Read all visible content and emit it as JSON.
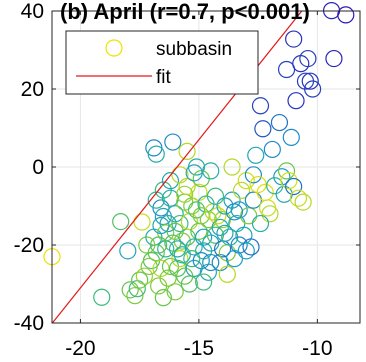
{
  "chart_data": {
    "type": "scatter",
    "title": "(b) April (r=0.7, p<0.001)",
    "xlim": [
      -21.2,
      -8.2
    ],
    "ylim": [
      -40,
      40
    ],
    "x_ticks": [
      -20,
      -15,
      -10
    ],
    "x_tick_labels": [
      "-20",
      "-15",
      "-10"
    ],
    "y_ticks": [
      -40,
      -20,
      0,
      20,
      40
    ],
    "y_tick_labels": [
      "-40",
      "-20",
      "0",
      "20",
      "40"
    ],
    "grid": true,
    "legend_position": "top-left",
    "series": [
      {
        "name": "subbasin",
        "marker": "open-circle",
        "color_scale": [
          "#f2e000",
          "#c7dc20",
          "#6cc742",
          "#2cb39a",
          "#1d9cc9",
          "#2346c1",
          "#2b18b8"
        ],
        "points": [
          [
            -21.2,
            -23.0,
            0.02
          ],
          [
            -19.1,
            -33.4,
            0.45
          ],
          [
            -18.3,
            -14.0,
            0.4
          ],
          [
            -18.0,
            -21.5,
            0.6
          ],
          [
            -17.9,
            -31.5,
            0.35
          ],
          [
            -17.7,
            -33.0,
            0.3
          ],
          [
            -17.6,
            -31.2,
            0.45
          ],
          [
            -17.5,
            -29.0,
            0.35
          ],
          [
            -17.4,
            -14.1,
            0.15
          ],
          [
            -17.3,
            -28.0,
            0.25
          ],
          [
            -17.2,
            -20.0,
            0.3
          ],
          [
            -17.0,
            -24.0,
            0.4
          ],
          [
            -16.9,
            -18.0,
            0.55
          ],
          [
            -16.9,
            4.9,
            0.7
          ],
          [
            -16.8,
            3.3,
            0.55
          ],
          [
            -16.8,
            -22.0,
            0.35
          ],
          [
            -16.7,
            -30.5,
            0.3
          ],
          [
            -16.6,
            -26.0,
            0.2
          ],
          [
            -16.6,
            -10.5,
            0.7
          ],
          [
            -16.5,
            -12.7,
            0.6
          ],
          [
            -16.5,
            -5.9,
            0.45
          ],
          [
            -16.4,
            -16.9,
            0.3
          ],
          [
            -16.4,
            -21.0,
            0.5
          ],
          [
            -16.3,
            -14.5,
            0.6
          ],
          [
            -16.3,
            -28.5,
            0.3
          ],
          [
            -16.2,
            -8.0,
            0.55
          ],
          [
            -16.2,
            -25.5,
            0.35
          ],
          [
            -16.1,
            6.4,
            0.7
          ],
          [
            -16.1,
            -19.5,
            0.4
          ],
          [
            -16.0,
            -12.0,
            0.55
          ],
          [
            -16.0,
            -16.5,
            0.35
          ],
          [
            -16.0,
            -32.0,
            0.3
          ],
          [
            -15.9,
            -26.0,
            0.4
          ],
          [
            -15.8,
            -23.5,
            0.2
          ],
          [
            -15.8,
            -14.5,
            0.45
          ],
          [
            -15.7,
            -19.0,
            0.3
          ],
          [
            -15.7,
            -22.5,
            0.5
          ],
          [
            -15.6,
            -28.0,
            0.35
          ],
          [
            -15.6,
            -9.0,
            0.3
          ],
          [
            -15.5,
            -5.0,
            0.2
          ],
          [
            -15.5,
            4.0,
            0.2
          ],
          [
            -15.5,
            -18.0,
            0.4
          ],
          [
            -15.4,
            -14.0,
            0.2
          ],
          [
            -15.3,
            -10.0,
            0.3
          ],
          [
            -15.3,
            -23.5,
            0.45
          ],
          [
            -15.2,
            -20.5,
            0.55
          ],
          [
            -15.2,
            -26.0,
            0.6
          ],
          [
            -15.1,
            0.0,
            0.55
          ],
          [
            -15.1,
            -11.0,
            0.4
          ],
          [
            -15.0,
            -16.5,
            0.35
          ],
          [
            -15.0,
            -6.5,
            0.15
          ],
          [
            -14.9,
            -12.5,
            0.3
          ],
          [
            -14.9,
            -24.0,
            0.7
          ],
          [
            -14.8,
            -21.5,
            0.5
          ],
          [
            -14.8,
            -18.0,
            0.65
          ],
          [
            -14.7,
            -9.5,
            0.5
          ],
          [
            -14.6,
            -27.0,
            0.6
          ],
          [
            -14.6,
            -13.5,
            0.3
          ],
          [
            -14.5,
            -19.5,
            0.6
          ],
          [
            -14.5,
            -24.5,
            0.7
          ],
          [
            -14.4,
            -11.5,
            0.2
          ],
          [
            -14.3,
            -17.5,
            0.4
          ],
          [
            -14.2,
            -12.5,
            0.15
          ],
          [
            -14.1,
            -24.5,
            0.7
          ],
          [
            -14.1,
            -15.5,
            0.6
          ],
          [
            -14.0,
            -21.0,
            0.75
          ],
          [
            -14.0,
            -13.5,
            0.25
          ],
          [
            -13.9,
            -10.0,
            0.6
          ],
          [
            -13.8,
            -22.0,
            0.3
          ],
          [
            -13.8,
            -27.5,
            0.2
          ],
          [
            -13.7,
            -18.0,
            0.5
          ],
          [
            -13.6,
            -8.5,
            0.6
          ],
          [
            -13.5,
            -23.5,
            0.65
          ],
          [
            -13.4,
            -14.5,
            0.55
          ],
          [
            -13.3,
            -20.0,
            0.7
          ],
          [
            -13.3,
            -11.0,
            0.65
          ],
          [
            -13.2,
            -6.0,
            0.2
          ],
          [
            -13.1,
            -17.5,
            0.6
          ],
          [
            -13.0,
            -21.5,
            0.65
          ],
          [
            -13.0,
            -3.5,
            0.15
          ],
          [
            -12.9,
            -12.5,
            0.3
          ],
          [
            -12.8,
            -20.5,
            0.75
          ],
          [
            -12.7,
            -2.0,
            0.7
          ],
          [
            -12.7,
            -8.5,
            0.7
          ],
          [
            -12.6,
            3.0,
            0.6
          ],
          [
            -12.5,
            -4.5,
            0.1
          ],
          [
            -12.4,
            15.7,
            0.85
          ],
          [
            -12.3,
            9.8,
            0.8
          ],
          [
            -12.2,
            -6.5,
            0.05
          ],
          [
            -12.0,
            -12.0,
            0.2
          ],
          [
            -11.9,
            4.5,
            0.7
          ],
          [
            -11.8,
            -4.8,
            0.5
          ],
          [
            -11.6,
            11.4,
            0.75
          ],
          [
            -11.5,
            -2.5,
            0.65
          ],
          [
            -11.4,
            -7.0,
            0.6
          ],
          [
            -11.3,
            -1.0,
            0.35
          ],
          [
            -11.3,
            25.0,
            0.85
          ],
          [
            -11.2,
            -3.5,
            0.1
          ],
          [
            -11.1,
            7.6,
            0.7
          ],
          [
            -11.0,
            -5.0,
            0.75
          ],
          [
            -11.0,
            32.8,
            0.9
          ],
          [
            -10.9,
            17.0,
            0.9
          ],
          [
            -10.8,
            -8.0,
            0.15
          ],
          [
            -10.7,
            26.5,
            0.9
          ],
          [
            -10.6,
            -9.0,
            0.2
          ],
          [
            -10.5,
            22.0,
            0.85
          ],
          [
            -10.4,
            27.8,
            0.85
          ],
          [
            -10.3,
            22.0,
            0.9
          ],
          [
            -10.2,
            20.0,
            0.85
          ],
          [
            -9.4,
            40.1,
            0.95
          ],
          [
            -9.3,
            27.8,
            0.95
          ],
          [
            -8.8,
            39.0,
            1.0
          ],
          [
            -16.2,
            -3.5,
            0.6
          ],
          [
            -15.8,
            -2.0,
            0.2
          ],
          [
            -14.9,
            -3.0,
            0.35
          ],
          [
            -14.5,
            -1.0,
            0.55
          ],
          [
            -15.6,
            -7.0,
            0.25
          ],
          [
            -16.7,
            -20.0,
            0.4
          ],
          [
            -17.1,
            -25.5,
            0.3
          ],
          [
            -16.5,
            -33.5,
            0.35
          ],
          [
            -15.4,
            -30.0,
            0.4
          ],
          [
            -14.8,
            -29.5,
            0.45
          ],
          [
            -13.9,
            -17.0,
            0.6
          ],
          [
            -12.4,
            -14.5,
            0.55
          ],
          [
            -12.1,
            -10.5,
            0.15
          ],
          [
            -13.6,
            0.0,
            0.2
          ],
          [
            -15.9,
            -21.0,
            0.55
          ],
          [
            -16.6,
            -15.0,
            0.6
          ],
          [
            -14.3,
            -7.5,
            0.45
          ],
          [
            -16.8,
            -8.5,
            0.5
          ],
          [
            -15.2,
            -1.5,
            0.6
          ],
          [
            -13.5,
            -11.5,
            0.7
          ]
        ]
      }
    ],
    "fit": {
      "name": "fit",
      "color": "#e31a1c",
      "slope": 7.6,
      "intercept": 121.0
    }
  }
}
